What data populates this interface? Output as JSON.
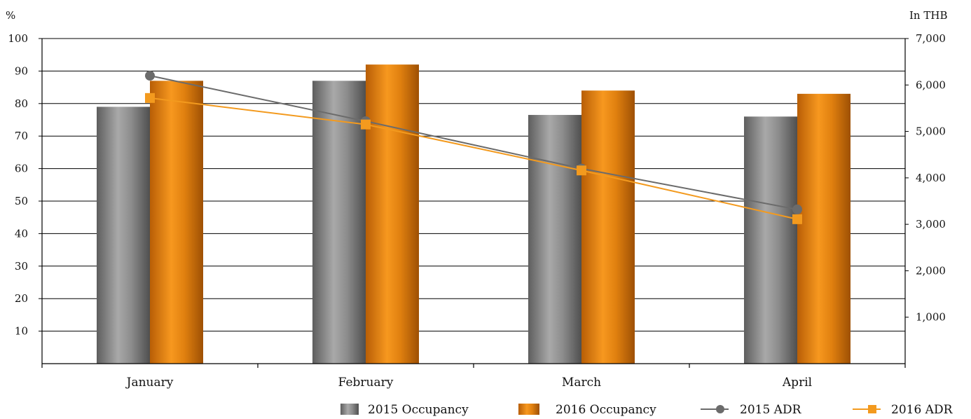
{
  "chart_data": {
    "type": "bar",
    "categories": [
      "January",
      "February",
      "March",
      "April"
    ],
    "left_axis": {
      "unit_label": "%",
      "ylim": [
        0,
        100
      ],
      "ticks": [
        10,
        20,
        30,
        40,
        50,
        60,
        70,
        80,
        90,
        100
      ],
      "tick_labels": [
        "10",
        "20",
        "30",
        "40",
        "50",
        "60",
        "70",
        "80",
        "90",
        "100"
      ]
    },
    "right_axis": {
      "unit_label": "In THB",
      "ylim": [
        0,
        7000
      ],
      "ticks": [
        1000,
        2000,
        3000,
        4000,
        5000,
        6000,
        7000
      ],
      "tick_labels": [
        "1,000",
        "2,000",
        "3,000",
        "4,000",
        "5,000",
        "6,000",
        "7,000"
      ]
    },
    "grid": true,
    "legend_position": "bottom-right",
    "series": [
      {
        "name": "2015 Occupancy",
        "kind": "bar",
        "axis": "left",
        "color": "#8a8a8a",
        "values": [
          79,
          87,
          76.5,
          76
        ]
      },
      {
        "name": "2016 Occupancy",
        "kind": "bar",
        "axis": "left",
        "color": "#e8820c",
        "values": [
          87,
          92,
          84,
          83
        ]
      },
      {
        "name": "2015 ADR",
        "kind": "line",
        "axis": "right",
        "marker": "circle",
        "color": "#6b6b6b",
        "values": [
          6200,
          5220,
          4200,
          3320
        ]
      },
      {
        "name": "2016 ADR",
        "kind": "line",
        "axis": "right",
        "marker": "square",
        "color": "#f39a1e",
        "values": [
          5720,
          5150,
          4160,
          3110
        ]
      }
    ]
  }
}
